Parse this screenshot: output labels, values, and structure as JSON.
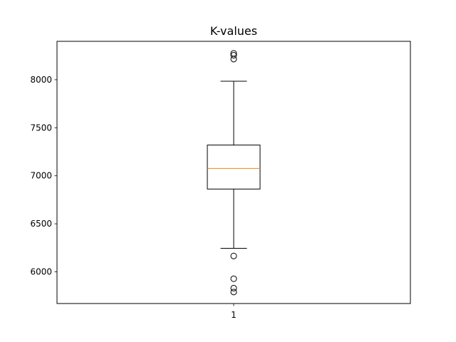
{
  "chart_data": {
    "type": "box",
    "title": "K-values",
    "xlabel": "",
    "ylabel": "",
    "categories": [
      "1"
    ],
    "ylim": [
      5670,
      8400
    ],
    "yticks": [
      6000,
      6500,
      7000,
      7500,
      8000
    ],
    "grid": false,
    "boxes": [
      {
        "category": "1",
        "whisker_low": 6245,
        "q1": 6862,
        "median": 7077,
        "q3": 7320,
        "whisker_high": 7985,
        "outliers": [
          6165,
          5928,
          5830,
          5790,
          8215,
          8255,
          8275
        ]
      }
    ],
    "colors": {
      "box": "#000000",
      "median": "#ff7f0e",
      "outlier": "#000000"
    }
  }
}
